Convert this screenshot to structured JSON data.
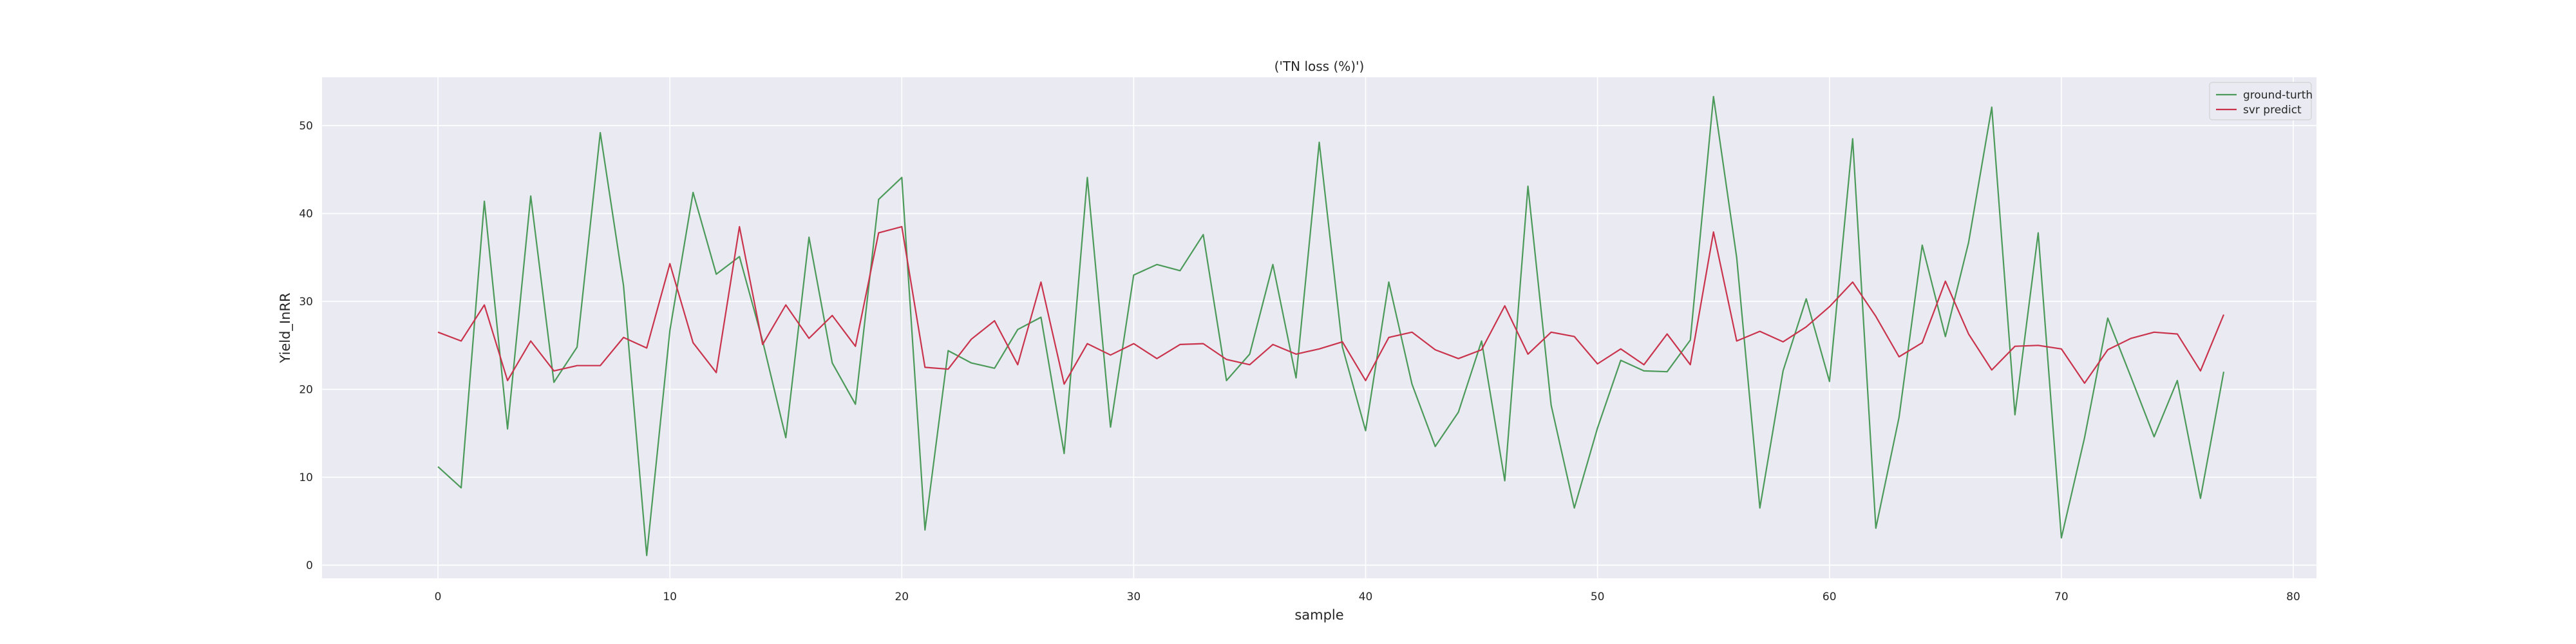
{
  "chart_data": {
    "type": "line",
    "title": "('TN loss (%)')",
    "xlabel": "sample",
    "ylabel": "Yield_InRR",
    "xlim": [
      -5,
      81
    ],
    "ylim": [
      -1.5,
      55.5
    ],
    "xticks": [
      0,
      10,
      20,
      30,
      40,
      50,
      60,
      70,
      80
    ],
    "yticks": [
      0,
      10,
      20,
      30,
      40,
      50
    ],
    "grid": true,
    "legend_position": "top-right",
    "series": [
      {
        "name": "ground-turth",
        "color": "#4c9a5a",
        "x": [
          0,
          1,
          2,
          3,
          4,
          5,
          6,
          7,
          8,
          9,
          10,
          11,
          12,
          13,
          14,
          15,
          16,
          17,
          18,
          19,
          20,
          21,
          22,
          23,
          24,
          25,
          26,
          27,
          28,
          29,
          30,
          31,
          32,
          33,
          34,
          35,
          36,
          37,
          38,
          39,
          40,
          41,
          42,
          43,
          44,
          45,
          46,
          47,
          48,
          49,
          50,
          51,
          52,
          53,
          54,
          55,
          56,
          57,
          58,
          59,
          60,
          61,
          62,
          63,
          64,
          65,
          66,
          67,
          68,
          69,
          70,
          71,
          72,
          73,
          74,
          75,
          76,
          77
        ],
        "values": [
          11.2,
          8.8,
          41.4,
          15.5,
          42.0,
          20.8,
          24.8,
          49.2,
          31.8,
          1.1,
          26.7,
          42.4,
          33.1,
          35.1,
          25.5,
          14.5,
          37.3,
          23.0,
          18.3,
          41.6,
          44.1,
          4.0,
          24.4,
          23.0,
          22.4,
          26.8,
          28.2,
          12.7,
          44.1,
          15.7,
          33.0,
          34.2,
          33.5,
          37.6,
          21.0,
          24.0,
          34.2,
          21.3,
          48.1,
          24.8,
          15.3,
          32.2,
          20.6,
          13.5,
          17.4,
          25.5,
          9.6,
          43.1,
          18.2,
          6.5,
          15.6,
          23.3,
          22.1,
          22.0,
          25.6,
          53.3,
          35.0,
          6.5,
          22.1,
          30.3,
          20.9,
          48.5,
          4.2,
          16.8,
          36.4,
          26.0,
          36.7,
          52.1,
          17.1,
          37.8,
          3.1,
          14.5,
          28.1,
          21.4,
          14.6,
          21.0,
          7.6,
          22.0
        ]
      },
      {
        "name": "svr predict",
        "color": "#c9334c",
        "x": [
          0,
          1,
          2,
          3,
          4,
          5,
          6,
          7,
          8,
          9,
          10,
          11,
          12,
          13,
          14,
          15,
          16,
          17,
          18,
          19,
          20,
          21,
          22,
          23,
          24,
          25,
          26,
          27,
          28,
          29,
          30,
          31,
          32,
          33,
          34,
          35,
          36,
          37,
          38,
          39,
          40,
          41,
          42,
          43,
          44,
          45,
          46,
          47,
          48,
          49,
          50,
          51,
          52,
          53,
          54,
          55,
          56,
          57,
          58,
          59,
          60,
          61,
          62,
          63,
          64,
          65,
          66,
          67,
          68,
          69,
          70,
          71,
          72,
          73,
          74,
          75,
          76,
          77
        ],
        "values": [
          26.5,
          25.5,
          29.6,
          21.0,
          25.5,
          22.1,
          22.7,
          22.7,
          25.9,
          24.7,
          34.3,
          25.3,
          21.9,
          38.5,
          25.1,
          29.6,
          25.8,
          28.4,
          24.9,
          37.8,
          38.5,
          22.5,
          22.3,
          25.7,
          27.8,
          22.8,
          32.2,
          20.6,
          25.2,
          23.9,
          25.2,
          23.5,
          25.1,
          25.2,
          23.4,
          22.8,
          25.1,
          24.0,
          24.6,
          25.4,
          21.0,
          25.9,
          26.5,
          24.5,
          23.5,
          24.5,
          29.5,
          24.0,
          26.5,
          26.0,
          22.9,
          24.6,
          22.8,
          26.3,
          22.8,
          37.9,
          25.5,
          26.6,
          25.4,
          27.1,
          29.4,
          32.2,
          28.3,
          23.7,
          25.3,
          32.3,
          26.3,
          22.2,
          24.9,
          25.0,
          24.6,
          20.7,
          24.5,
          25.8,
          26.5,
          26.3,
          22.1,
          28.5
        ]
      }
    ]
  }
}
